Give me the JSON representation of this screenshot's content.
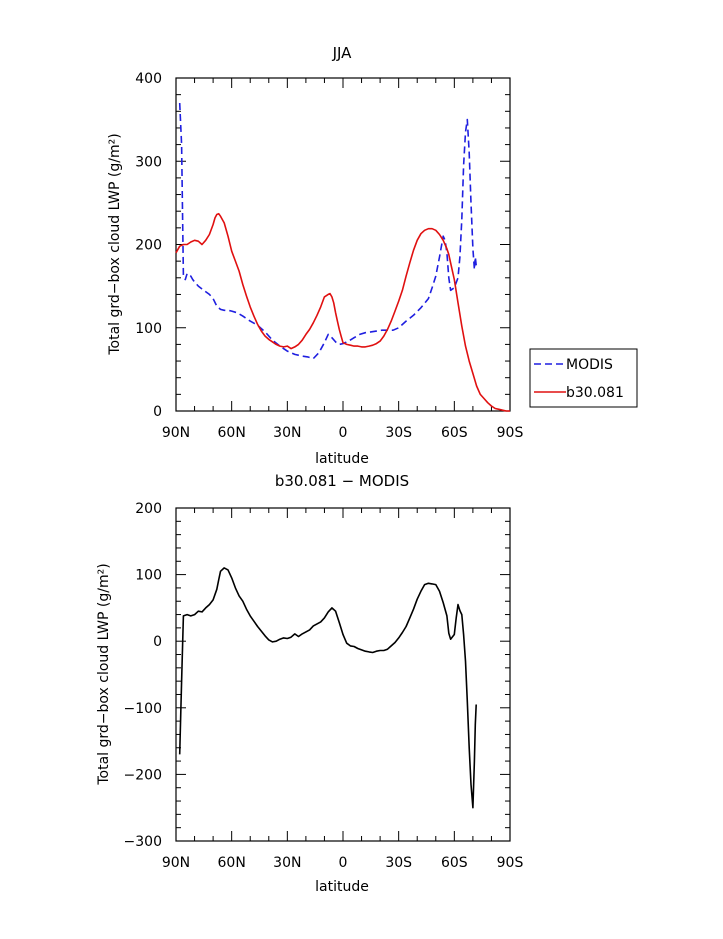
{
  "chart_data": [
    {
      "type": "line",
      "title": "JJA",
      "xlabel": "latitude",
      "ylabel": "Total grd−box cloud LWP (g/m²)",
      "xlim": [
        -90,
        90
      ],
      "ylim": [
        0,
        400
      ],
      "x_ticks": [
        -90,
        -60,
        -30,
        0,
        30,
        60,
        90
      ],
      "x_tick_labels": [
        "90N",
        "60N",
        "30N",
        "0",
        "30S",
        "60S",
        "90S"
      ],
      "y_ticks": [
        0,
        100,
        200,
        300,
        400
      ],
      "y_tick_labels": [
        "0",
        "100",
        "200",
        "300",
        "400"
      ],
      "legend_position": "right",
      "series": [
        {
          "name": "MODIS",
          "color": "#1f1fe0",
          "style": "dashed",
          "x": [
            -88,
            -87,
            -86,
            -85,
            -84,
            -83,
            -82,
            -81,
            -80,
            -78,
            -75,
            -72,
            -70,
            -68,
            -66,
            -64,
            -62,
            -60,
            -57,
            -54,
            -50,
            -46,
            -42,
            -38,
            -34,
            -30,
            -26,
            -22,
            -19,
            -16,
            -13,
            -10,
            -8,
            -6,
            -4,
            -2,
            0,
            3,
            6,
            9,
            12,
            15,
            18,
            21,
            24,
            27,
            30,
            34,
            38,
            42,
            46,
            48,
            50,
            52,
            54,
            55,
            56,
            57,
            58,
            60,
            62,
            63,
            64,
            65,
            66,
            67,
            68,
            69,
            70,
            70.8,
            71.3,
            71.8
          ],
          "y": [
            370,
            320,
            162,
            158,
            165,
            163,
            162,
            158,
            155,
            150,
            145,
            140,
            135,
            126,
            122,
            121,
            121,
            120,
            118,
            114,
            108,
            103,
            95,
            85,
            78,
            72,
            68,
            66,
            65,
            63,
            70,
            82,
            92,
            88,
            83,
            80,
            81,
            84,
            88,
            92,
            94,
            95,
            96,
            97,
            97,
            97,
            100,
            108,
            115,
            124,
            135,
            148,
            162,
            185,
            210,
            205,
            190,
            160,
            145,
            148,
            160,
            185,
            230,
            295,
            335,
            350,
            310,
            250,
            195,
            170,
            185,
            175
          ]
        },
        {
          "name": "b30.081",
          "color": "#e01010",
          "style": "solid",
          "x": [
            -90,
            -88,
            -86,
            -84,
            -82,
            -80,
            -78,
            -76,
            -74,
            -72,
            -70,
            -69,
            -68,
            -67,
            -66,
            -64,
            -62,
            -60,
            -58,
            -56,
            -54,
            -52,
            -50,
            -48,
            -46,
            -44,
            -42,
            -40,
            -38,
            -36,
            -34,
            -32,
            -30,
            -28,
            -26,
            -24,
            -22,
            -20,
            -18,
            -16,
            -14,
            -12,
            -10,
            -8,
            -7,
            -6,
            -5,
            -4,
            -3,
            -2,
            -1,
            0,
            2,
            4,
            6,
            8,
            10,
            12,
            14,
            16,
            18,
            20,
            22,
            24,
            26,
            28,
            30,
            32,
            34,
            36,
            38,
            40,
            42,
            44,
            46,
            48,
            50,
            52,
            54,
            56,
            57,
            58,
            60,
            62,
            64,
            66,
            68,
            70,
            72,
            74,
            76,
            78,
            80,
            82,
            84,
            86,
            88,
            90
          ],
          "y": [
            190,
            198,
            200,
            200,
            203,
            205,
            204,
            200,
            205,
            212,
            224,
            232,
            236,
            237,
            234,
            226,
            210,
            192,
            180,
            168,
            152,
            138,
            125,
            114,
            104,
            96,
            90,
            86,
            83,
            80,
            78,
            77,
            78,
            75,
            77,
            80,
            85,
            92,
            98,
            106,
            115,
            125,
            137,
            140,
            141,
            137,
            130,
            118,
            108,
            98,
            90,
            82,
            80,
            79,
            78,
            78,
            77,
            77,
            78,
            79,
            81,
            84,
            90,
            98,
            108,
            120,
            132,
            145,
            162,
            178,
            193,
            205,
            213,
            217,
            219,
            219,
            217,
            212,
            205,
            195,
            188,
            178,
            158,
            130,
            102,
            78,
            60,
            45,
            30,
            20,
            15,
            10,
            6,
            3,
            2,
            1,
            0,
            0
          ]
        }
      ]
    },
    {
      "type": "line",
      "title": "b30.081 − MODIS",
      "xlabel": "latitude",
      "ylabel": "Total grd−box cloud LWP (g/m²)",
      "xlim": [
        -90,
        90
      ],
      "ylim": [
        -300,
        200
      ],
      "x_ticks": [
        -90,
        -60,
        -30,
        0,
        30,
        60,
        90
      ],
      "x_tick_labels": [
        "90N",
        "60N",
        "30N",
        "0",
        "30S",
        "60S",
        "90S"
      ],
      "y_ticks": [
        -300,
        -200,
        -100,
        0,
        100,
        200
      ],
      "y_tick_labels": [
        "−300",
        "−200",
        "−100",
        "0",
        "100",
        "200"
      ],
      "series": [
        {
          "color": "#000000",
          "style": "solid",
          "x": [
            -88,
            -87,
            -86,
            -84,
            -82,
            -80,
            -78,
            -76,
            -74,
            -72,
            -70,
            -68,
            -67,
            -66,
            -64,
            -62,
            -60,
            -58,
            -56,
            -54,
            -52,
            -50,
            -48,
            -46,
            -44,
            -42,
            -40,
            -38,
            -36,
            -34,
            -32,
            -30,
            -28,
            -26,
            -24,
            -22,
            -20,
            -18,
            -16,
            -14,
            -12,
            -10,
            -8,
            -6,
            -4,
            -2,
            0,
            2,
            4,
            6,
            8,
            10,
            12,
            14,
            16,
            18,
            20,
            22,
            24,
            26,
            28,
            30,
            32,
            34,
            36,
            38,
            40,
            42,
            44,
            46,
            48,
            50,
            52,
            54,
            56,
            57,
            58,
            60,
            61,
            62,
            63,
            64,
            65,
            66,
            67,
            68,
            69,
            70,
            70.8,
            71.3,
            71.8
          ],
          "y": [
            -170,
            -60,
            38,
            40,
            38,
            40,
            45,
            44,
            50,
            55,
            62,
            78,
            92,
            105,
            110,
            107,
            95,
            80,
            68,
            60,
            48,
            38,
            30,
            22,
            15,
            8,
            2,
            -1,
            0,
            3,
            5,
            4,
            6,
            11,
            7,
            11,
            14,
            17,
            23,
            26,
            29,
            35,
            44,
            50,
            45,
            28,
            10,
            -3,
            -7,
            -8,
            -11,
            -13,
            -15,
            -16,
            -17,
            -15,
            -14,
            -14,
            -12,
            -7,
            -2,
            5,
            13,
            22,
            35,
            48,
            63,
            75,
            85,
            87,
            86,
            85,
            75,
            58,
            38,
            12,
            3,
            10,
            35,
            55,
            46,
            40,
            10,
            -30,
            -90,
            -160,
            -215,
            -250,
            -180,
            -125,
            -95
          ]
        }
      ]
    }
  ],
  "legend": [
    {
      "label": "MODIS",
      "color": "#1f1fe0",
      "style": "dashed"
    },
    {
      "label": "b30.081",
      "color": "#e01010",
      "style": "solid"
    }
  ]
}
